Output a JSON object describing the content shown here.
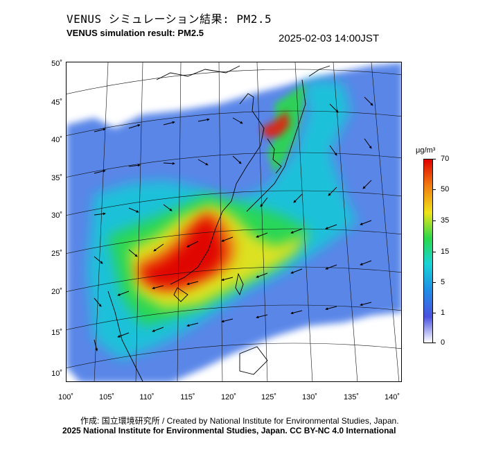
{
  "header": {
    "title_jp": "VENUS シミュレーション結果: PM2.5",
    "title_en": "VENUS simulation result: PM2.5",
    "timestamp": "2025-02-03 14:00JST"
  },
  "map": {
    "lat_labels": [
      "50˚",
      "45˚",
      "40˚",
      "35˚",
      "30˚",
      "25˚",
      "20˚",
      "15˚",
      "10˚"
    ],
    "lat_values": [
      50,
      45,
      40,
      35,
      30,
      25,
      20,
      15,
      10
    ],
    "lon_labels": [
      "100˚",
      "105˚",
      "110˚",
      "115˚",
      "120˚",
      "125˚",
      "130˚",
      "135˚",
      "140˚"
    ],
    "lon_values": [
      100,
      105,
      110,
      115,
      120,
      125,
      130,
      135,
      140
    ]
  },
  "colorbar": {
    "unit": "μg/m³",
    "ticks": [
      "70",
      "50",
      "35",
      "15",
      "5",
      "1",
      "0"
    ],
    "colors": [
      "#ffffff",
      "#4a52e0",
      "#1f8fe6",
      "#19d3d6",
      "#2bd94a",
      "#f0e31a",
      "#f07a10",
      "#e00000"
    ]
  },
  "footer": {
    "credit_jp": "作成: 国立環境研究所 / Created by National Institute for Environmental Studies, Japan.",
    "copyright": "2025 National Institute for Environmental Studies, Japan. CC BY-NC 4.0 International"
  }
}
